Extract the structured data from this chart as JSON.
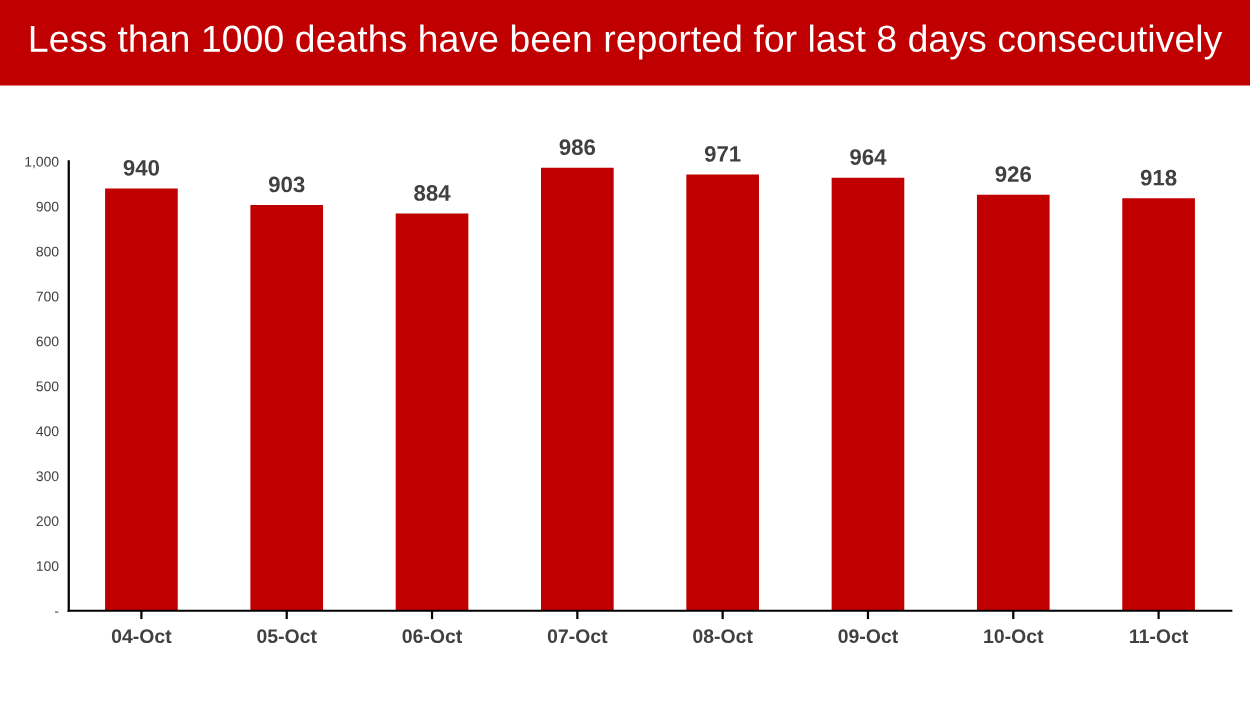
{
  "chart_data": {
    "type": "bar",
    "title": "Less than 1000 deaths have been reported for last 8 days consecutively",
    "categories": [
      "04-Oct",
      "05-Oct",
      "06-Oct",
      "07-Oct",
      "08-Oct",
      "09-Oct",
      "10-Oct",
      "11-Oct"
    ],
    "values": [
      940,
      903,
      884,
      986,
      971,
      964,
      926,
      918
    ],
    "color": "#c00000",
    "ylim": [
      0,
      1000
    ],
    "yticks": [
      {
        "value": 0,
        "label": "-"
      },
      100,
      200,
      300,
      400,
      500,
      600,
      700,
      800,
      900,
      {
        "value": 1000,
        "label": "1,000"
      }
    ],
    "data_labels": true,
    "grid": false
  }
}
